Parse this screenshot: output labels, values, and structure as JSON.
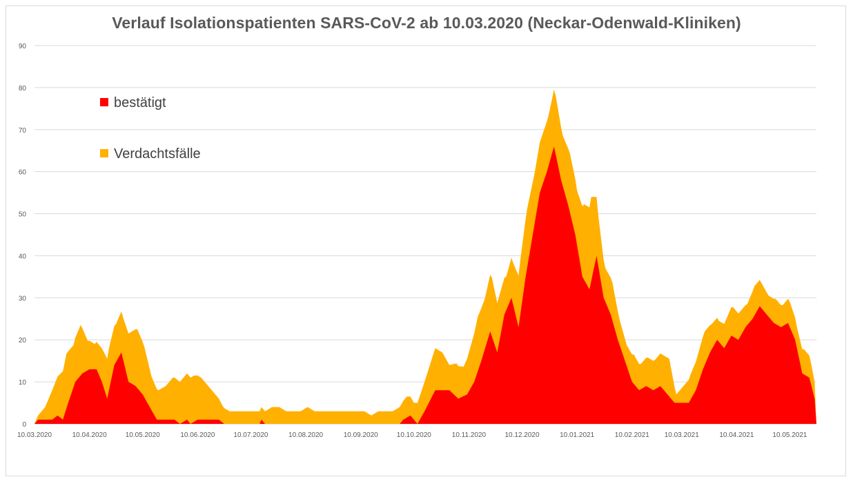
{
  "chart_data": {
    "type": "area",
    "stacked": true,
    "title": "Verlauf Isolationspatienten SARS-CoV-2 ab 10.03.2020 (Neckar-Odenwald-Kliniken)",
    "xlabel": "",
    "ylabel": "",
    "ylim": [
      0,
      90
    ],
    "yticks": [
      0,
      10,
      20,
      30,
      40,
      50,
      60,
      70,
      80,
      90
    ],
    "xlim": [
      "2020-03-10",
      "2021-05-25"
    ],
    "xticks": [
      "10.03.2020",
      "10.04.2020",
      "10.05.2020",
      "10.06.2020",
      "10.07.2020",
      "10.08.2020",
      "10.09.2020",
      "10.10.2020",
      "10.11.2020",
      "10.12.2020",
      "10.01.2021",
      "10.02.2021",
      "10.03.2021",
      "10.04.2021",
      "10.05.2021"
    ],
    "grid": "horizontal",
    "legend_position": "top-left",
    "colors": {
      "bestaetigt": "#ff0000",
      "verdacht": "#ffb000",
      "grid": "#d9d9d9",
      "axis": "#bfbfbf"
    },
    "series": [
      {
        "name": "bestätigt",
        "color": "#ff0000",
        "points": [
          [
            "2020-03-10",
            0
          ],
          [
            "2020-03-12",
            1
          ],
          [
            "2020-03-20",
            1
          ],
          [
            "2020-03-23",
            2
          ],
          [
            "2020-03-26",
            1
          ],
          [
            "2020-03-29",
            5
          ],
          [
            "2020-04-02",
            10
          ],
          [
            "2020-04-06",
            12
          ],
          [
            "2020-04-10",
            13
          ],
          [
            "2020-04-14",
            13
          ],
          [
            "2020-04-17",
            10
          ],
          [
            "2020-04-20",
            6
          ],
          [
            "2020-04-24",
            14
          ],
          [
            "2020-04-28",
            17
          ],
          [
            "2020-05-02",
            10
          ],
          [
            "2020-05-06",
            9
          ],
          [
            "2020-05-10",
            7
          ],
          [
            "2020-05-14",
            4
          ],
          [
            "2020-05-18",
            1
          ],
          [
            "2020-05-28",
            1
          ],
          [
            "2020-05-31",
            0
          ],
          [
            "2020-06-04",
            1
          ],
          [
            "2020-06-06",
            0
          ],
          [
            "2020-06-10",
            1
          ],
          [
            "2020-06-22",
            1
          ],
          [
            "2020-06-25",
            0
          ],
          [
            "2020-07-15",
            0
          ],
          [
            "2020-07-16",
            1
          ],
          [
            "2020-07-18",
            0
          ],
          [
            "2020-10-02",
            0
          ],
          [
            "2020-10-04",
            1
          ],
          [
            "2020-10-08",
            2
          ],
          [
            "2020-10-12",
            0
          ],
          [
            "2020-10-16",
            3
          ],
          [
            "2020-10-22",
            8
          ],
          [
            "2020-10-30",
            8
          ],
          [
            "2020-11-04",
            6
          ],
          [
            "2020-11-09",
            7
          ],
          [
            "2020-11-13",
            10
          ],
          [
            "2020-11-17",
            15
          ],
          [
            "2020-11-22",
            22
          ],
          [
            "2020-11-26",
            17
          ],
          [
            "2020-11-30",
            26
          ],
          [
            "2020-12-04",
            30
          ],
          [
            "2020-12-08",
            23
          ],
          [
            "2020-12-12",
            35
          ],
          [
            "2020-12-16",
            45
          ],
          [
            "2020-12-20",
            55
          ],
          [
            "2020-12-24",
            60
          ],
          [
            "2020-12-28",
            66
          ],
          [
            "2021-01-01",
            58
          ],
          [
            "2021-01-05",
            52
          ],
          [
            "2021-01-09",
            45
          ],
          [
            "2021-01-13",
            35
          ],
          [
            "2021-01-17",
            32
          ],
          [
            "2021-01-21",
            40
          ],
          [
            "2021-01-25",
            30
          ],
          [
            "2021-01-29",
            26
          ],
          [
            "2021-02-02",
            20
          ],
          [
            "2021-02-06",
            15
          ],
          [
            "2021-02-10",
            10
          ],
          [
            "2021-02-14",
            8
          ],
          [
            "2021-02-18",
            9
          ],
          [
            "2021-02-22",
            8
          ],
          [
            "2021-02-26",
            9
          ],
          [
            "2021-03-02",
            7
          ],
          [
            "2021-03-06",
            5
          ],
          [
            "2021-03-14",
            5
          ],
          [
            "2021-03-18",
            8
          ],
          [
            "2021-03-22",
            13
          ],
          [
            "2021-03-26",
            17
          ],
          [
            "2021-03-30",
            20
          ],
          [
            "2021-04-03",
            18
          ],
          [
            "2021-04-07",
            21
          ],
          [
            "2021-04-11",
            20
          ],
          [
            "2021-04-15",
            23
          ],
          [
            "2021-04-19",
            25
          ],
          [
            "2021-04-23",
            28
          ],
          [
            "2021-04-27",
            26
          ],
          [
            "2021-05-01",
            24
          ],
          [
            "2021-05-05",
            23
          ],
          [
            "2021-05-09",
            24
          ],
          [
            "2021-05-13",
            20
          ],
          [
            "2021-05-17",
            12
          ],
          [
            "2021-05-21",
            11
          ],
          [
            "2021-05-24",
            6
          ]
        ]
      },
      {
        "name": "Verdachtsfälle",
        "color": "#ffb000",
        "points": [
          [
            "2020-03-10",
            0
          ],
          [
            "2020-03-12",
            1
          ],
          [
            "2020-03-16",
            3
          ],
          [
            "2020-03-20",
            7
          ],
          [
            "2020-03-24",
            10
          ],
          [
            "2020-03-28",
            13
          ],
          [
            "2020-04-01",
            10
          ],
          [
            "2020-04-05",
            12
          ],
          [
            "2020-04-09",
            7
          ],
          [
            "2020-04-13",
            6
          ],
          [
            "2020-04-17",
            8
          ],
          [
            "2020-04-21",
            10
          ],
          [
            "2020-04-25",
            9
          ],
          [
            "2020-04-29",
            10
          ],
          [
            "2020-05-03",
            12
          ],
          [
            "2020-05-07",
            14
          ],
          [
            "2020-05-11",
            12
          ],
          [
            "2020-05-15",
            8
          ],
          [
            "2020-05-19",
            7
          ],
          [
            "2020-05-23",
            8
          ],
          [
            "2020-05-27",
            10
          ],
          [
            "2020-05-31",
            10
          ],
          [
            "2020-06-04",
            11
          ],
          [
            "2020-06-08",
            11
          ],
          [
            "2020-06-12",
            10
          ],
          [
            "2020-06-16",
            8
          ],
          [
            "2020-06-20",
            6
          ],
          [
            "2020-06-24",
            4
          ],
          [
            "2020-06-28",
            3
          ],
          [
            "2020-07-02",
            3
          ],
          [
            "2020-07-06",
            3
          ],
          [
            "2020-07-10",
            3
          ],
          [
            "2020-07-14",
            3
          ],
          [
            "2020-07-18",
            3
          ],
          [
            "2020-07-22",
            4
          ],
          [
            "2020-07-26",
            4
          ],
          [
            "2020-07-30",
            3
          ],
          [
            "2020-08-03",
            3
          ],
          [
            "2020-08-07",
            3
          ],
          [
            "2020-08-11",
            4
          ],
          [
            "2020-08-15",
            3
          ],
          [
            "2020-08-19",
            3
          ],
          [
            "2020-08-23",
            3
          ],
          [
            "2020-08-27",
            3
          ],
          [
            "2020-08-31",
            3
          ],
          [
            "2020-09-04",
            3
          ],
          [
            "2020-09-08",
            3
          ],
          [
            "2020-09-12",
            3
          ],
          [
            "2020-09-16",
            2
          ],
          [
            "2020-09-20",
            3
          ],
          [
            "2020-09-24",
            3
          ],
          [
            "2020-09-28",
            3
          ],
          [
            "2020-10-02",
            4
          ],
          [
            "2020-10-06",
            5
          ],
          [
            "2020-10-10",
            4
          ],
          [
            "2020-10-14",
            6
          ],
          [
            "2020-10-18",
            8
          ],
          [
            "2020-10-22",
            10
          ],
          [
            "2020-10-26",
            9
          ],
          [
            "2020-10-30",
            6
          ],
          [
            "2020-11-03",
            8
          ],
          [
            "2020-11-07",
            7
          ],
          [
            "2020-11-11",
            10
          ],
          [
            "2020-11-15",
            13
          ],
          [
            "2020-11-19",
            12
          ],
          [
            "2020-11-23",
            14
          ],
          [
            "2020-11-27",
            11
          ],
          [
            "2020-12-01",
            8
          ],
          [
            "2020-12-05",
            10
          ],
          [
            "2020-12-09",
            13
          ],
          [
            "2020-12-13",
            14
          ],
          [
            "2020-12-17",
            12
          ],
          [
            "2020-12-21",
            12
          ],
          [
            "2020-12-25",
            12
          ],
          [
            "2020-12-29",
            14
          ],
          [
            "2021-01-02",
            12
          ],
          [
            "2021-01-06",
            14
          ],
          [
            "2021-01-10",
            13
          ],
          [
            "2021-01-14",
            18
          ],
          [
            "2021-01-18",
            20
          ],
          [
            "2021-01-22",
            12
          ],
          [
            "2021-01-26",
            8
          ],
          [
            "2021-01-30",
            9
          ],
          [
            "2021-02-03",
            6
          ],
          [
            "2021-02-07",
            5
          ],
          [
            "2021-02-11",
            7
          ],
          [
            "2021-02-15",
            6
          ],
          [
            "2021-02-19",
            7
          ],
          [
            "2021-02-23",
            7
          ],
          [
            "2021-02-27",
            8
          ],
          [
            "2021-03-03",
            9
          ],
          [
            "2021-03-07",
            2
          ],
          [
            "2021-03-11",
            4
          ],
          [
            "2021-03-15",
            6
          ],
          [
            "2021-03-19",
            7
          ],
          [
            "2021-03-23",
            8
          ],
          [
            "2021-03-27",
            6
          ],
          [
            "2021-03-31",
            5
          ],
          [
            "2021-04-04",
            6
          ],
          [
            "2021-04-08",
            7
          ],
          [
            "2021-04-12",
            6
          ],
          [
            "2021-04-16",
            5
          ],
          [
            "2021-04-20",
            7
          ],
          [
            "2021-04-24",
            6
          ],
          [
            "2021-04-28",
            5
          ],
          [
            "2021-05-02",
            6
          ],
          [
            "2021-05-06",
            5
          ],
          [
            "2021-05-10",
            6
          ],
          [
            "2021-05-14",
            5
          ],
          [
            "2021-05-18",
            6
          ],
          [
            "2021-05-22",
            5
          ],
          [
            "2021-05-24",
            4
          ]
        ]
      }
    ]
  }
}
